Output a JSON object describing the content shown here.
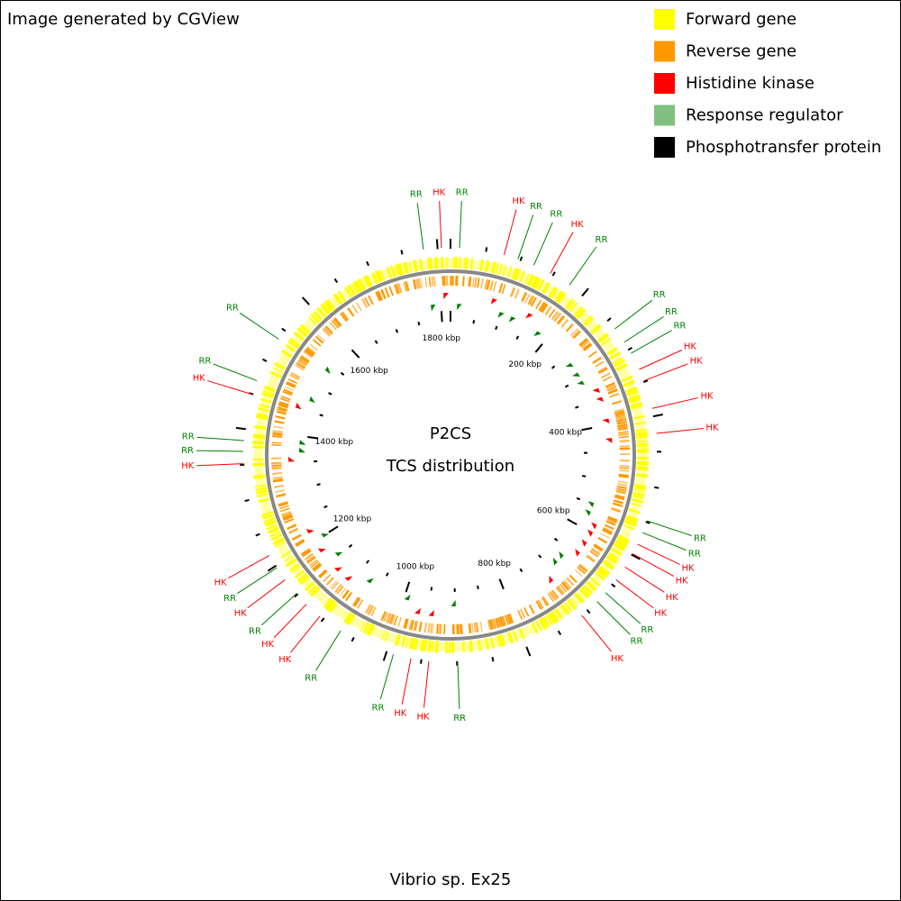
{
  "header": "Image generated by CGView",
  "legend": [
    {
      "label": "Forward gene",
      "color": "#ffff00"
    },
    {
      "label": "Reverse gene",
      "color": "#ff9900"
    },
    {
      "label": "Histidine kinase",
      "color": "#ff0000"
    },
    {
      "label": "Response regulator",
      "color": "#80c080"
    },
    {
      "label": "Phosphotransfer protein",
      "color": "#000000"
    }
  ],
  "center": {
    "title": "P2CS",
    "subtitle": "TCS distribution"
  },
  "footer": "Vibrio sp. Ex25",
  "scale_labels": [
    "200 kbp",
    "400 kbp",
    "600 kbp",
    "800 kbp",
    "1000 kbp",
    "1200 kbp",
    "1400 kbp",
    "1600 kbp",
    "1800 kbp"
  ],
  "features": [
    "RR",
    "HK",
    "RR",
    "HK",
    "RR",
    "RR",
    "HK",
    "RR",
    "RR",
    "RR",
    "RR",
    "HK",
    "HK",
    "HK",
    "HK",
    "RR",
    "RR",
    "HK",
    "HK",
    "HK",
    "HK",
    "RR",
    "RR",
    "HK",
    "RR",
    "HK",
    "HK",
    "RR",
    "RR",
    "HK",
    "HK",
    "RR",
    "HK",
    "RR",
    "HK",
    "HK",
    "RR",
    "RR",
    "HK",
    "RR",
    "RR"
  ]
}
